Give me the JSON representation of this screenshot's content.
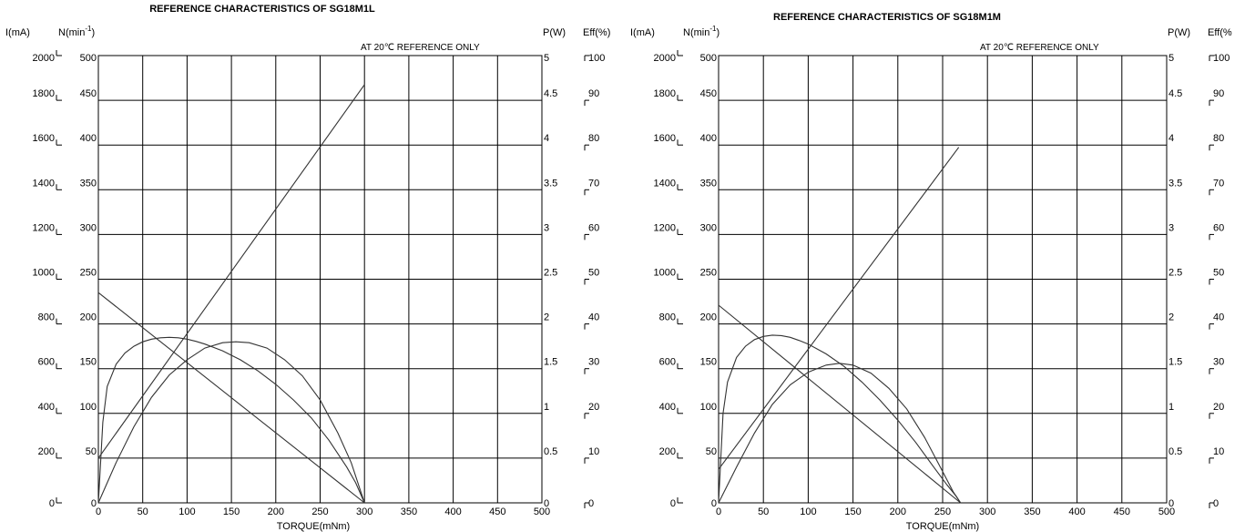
{
  "chart_data": [
    {
      "type": "line",
      "title": "REFERENCE CHARACTERISTICS  OF   SG18M1L",
      "note": "AT 20℃  REFERENCE ONLY",
      "xlabel": "TORQUE(mNm)",
      "xlim": [
        0,
        500
      ],
      "x_ticks": [
        "0",
        "50",
        "100",
        "150",
        "200",
        "250",
        "300",
        "350",
        "400",
        "450",
        "500"
      ],
      "axes": {
        "current": {
          "label": "I(mA)",
          "range": [
            0,
            2000
          ],
          "ticks": [
            "0",
            "200",
            "400",
            "600",
            "800",
            "1000",
            "1200",
            "1400",
            "1600",
            "1800",
            "2000"
          ]
        },
        "speed": {
          "label": "N(min",
          "label_sup": "-1",
          "label_end": ")",
          "range": [
            0,
            500
          ],
          "ticks": [
            "0",
            "50",
            "100",
            "150",
            "200",
            "250",
            "300",
            "350",
            "400",
            "450",
            "500"
          ]
        },
        "power": {
          "label": "P(W)",
          "range": [
            0,
            5
          ],
          "ticks": [
            "0",
            "0.5",
            "1",
            "1.5",
            "2",
            "2.5",
            "3",
            "3.5",
            "4",
            "4.5",
            "5"
          ]
        },
        "efficiency": {
          "label": "Eff(%)",
          "range": [
            0,
            100
          ],
          "ticks": [
            "0",
            "10",
            "20",
            "30",
            "40",
            "50",
            "60",
            "70",
            "80",
            "90",
            "100"
          ]
        }
      },
      "grid": true,
      "series": [
        {
          "axis": "current",
          "x": [
            0,
            300
          ],
          "y": [
            200,
            1870
          ]
        },
        {
          "axis": "speed",
          "x": [
            0,
            300
          ],
          "y": [
            235,
            0
          ]
        },
        {
          "axis": "efficiency",
          "x": [
            0,
            5,
            10,
            20,
            30,
            40,
            50,
            60,
            70,
            80,
            90,
            100,
            110,
            120,
            140,
            160,
            180,
            200,
            220,
            240,
            260,
            280,
            290,
            300
          ],
          "y": [
            0,
            18,
            26,
            31,
            33.5,
            35,
            36,
            36.6,
            36.9,
            37,
            36.9,
            36.6,
            36.1,
            35.5,
            34,
            32,
            29.5,
            26.5,
            23,
            19,
            14,
            8,
            4.5,
            0
          ]
        },
        {
          "axis": "power",
          "x": [
            0,
            20,
            40,
            60,
            80,
            100,
            120,
            140,
            155,
            170,
            190,
            210,
            230,
            250,
            270,
            285,
            300
          ],
          "y": [
            0,
            0.45,
            0.85,
            1.18,
            1.43,
            1.6,
            1.73,
            1.79,
            1.8,
            1.79,
            1.73,
            1.6,
            1.42,
            1.15,
            0.78,
            0.45,
            0
          ]
        }
      ]
    },
    {
      "type": "line",
      "title": "REFERENCE CHARACTERISTICS  OF   SG18M1M",
      "note": "AT 20℃  REFERENCE ONLY",
      "xlabel": "TORQUE(mNm)",
      "xlim": [
        0,
        500
      ],
      "x_ticks": [
        "0",
        "50",
        "100",
        "150",
        "200",
        "250",
        "300",
        "350",
        "400",
        "450",
        "500"
      ],
      "axes": {
        "current": {
          "label": "I(mA)",
          "range": [
            0,
            2000
          ],
          "ticks": [
            "0",
            "200",
            "400",
            "600",
            "800",
            "1000",
            "1200",
            "1400",
            "1600",
            "1800",
            "2000"
          ]
        },
        "speed": {
          "label": "N(min",
          "label_sup": "-1",
          "label_end": ")",
          "range": [
            0,
            500
          ],
          "ticks": [
            "0",
            "50",
            "100",
            "150",
            "200",
            "250",
            "300",
            "350",
            "400",
            "450",
            "500"
          ]
        },
        "power": {
          "label": "P(W)",
          "range": [
            0,
            5
          ],
          "ticks": [
            "0",
            "0.5",
            "1",
            "1.5",
            "2",
            "2.5",
            "3",
            "3.5",
            "4",
            "4.5",
            "5"
          ]
        },
        "efficiency": {
          "label": "Eff(%",
          "range": [
            0,
            100
          ],
          "ticks": [
            "0",
            "10",
            "20",
            "30",
            "40",
            "50",
            "60",
            "70",
            "80",
            "90",
            "100"
          ]
        }
      },
      "grid": true,
      "series": [
        {
          "axis": "current",
          "x": [
            0,
            268
          ],
          "y": [
            150,
            1590
          ]
        },
        {
          "axis": "speed",
          "x": [
            0,
            270
          ],
          "y": [
            221,
            0
          ]
        },
        {
          "axis": "efficiency",
          "x": [
            0,
            5,
            10,
            20,
            30,
            40,
            50,
            60,
            70,
            80,
            90,
            100,
            120,
            140,
            160,
            180,
            200,
            220,
            240,
            255,
            265,
            270
          ],
          "y": [
            0,
            20,
            27,
            32.5,
            35,
            36.5,
            37.2,
            37.5,
            37.4,
            37,
            36.3,
            35.5,
            33.3,
            30.5,
            27,
            23,
            18.5,
            13.5,
            8,
            4,
            1.5,
            0
          ]
        },
        {
          "axis": "power",
          "x": [
            0,
            20,
            40,
            60,
            80,
            100,
            120,
            135,
            150,
            170,
            190,
            210,
            230,
            250,
            262,
            270
          ],
          "y": [
            0,
            0.4,
            0.78,
            1.1,
            1.32,
            1.46,
            1.54,
            1.56,
            1.54,
            1.45,
            1.28,
            1.05,
            0.73,
            0.35,
            0.12,
            0
          ]
        }
      ]
    }
  ]
}
